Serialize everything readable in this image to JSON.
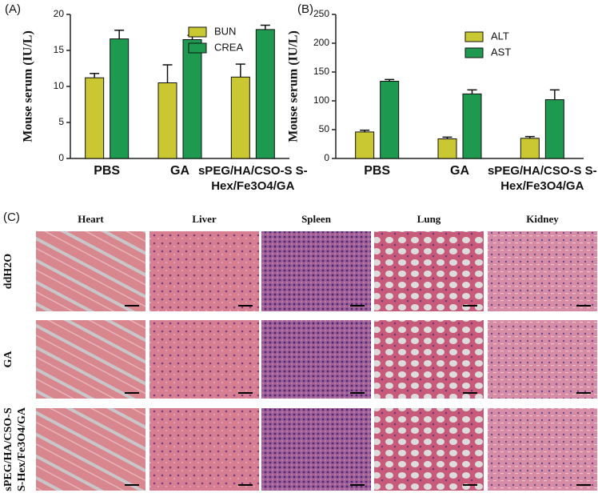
{
  "chart_data": [
    {
      "type": "bar",
      "panel": "(A)",
      "ylabel": "Mouse serum (IU/L)",
      "categories": [
        "PBS",
        "GA",
        "sPEG/HA/CSO-S S-Hex/Fe3O4/GA"
      ],
      "series": [
        {
          "name": "BUN",
          "color": "#c9c832",
          "values": [
            11.2,
            10.5,
            11.3
          ],
          "errors": [
            0.6,
            2.5,
            1.8
          ]
        },
        {
          "name": "CREA",
          "color": "#1e9a50",
          "values": [
            16.6,
            16.5,
            17.9
          ],
          "errors": [
            1.2,
            0.6,
            0.6
          ]
        }
      ],
      "ylim": [
        0,
        20
      ],
      "yticks": [
        0,
        5,
        10,
        15,
        20
      ]
    },
    {
      "type": "bar",
      "panel": "(B)",
      "ylabel": "Mouse serum (IU/L)",
      "categories": [
        "PBS",
        "GA",
        "sPEG/HA/CSO-S S-Hex/Fe3O4/GA"
      ],
      "series": [
        {
          "name": "ALT",
          "color": "#c9c832",
          "values": [
            46,
            34,
            35
          ],
          "errors": [
            3,
            3,
            3
          ]
        },
        {
          "name": "AST",
          "color": "#1e9a50",
          "values": [
            134,
            112,
            102
          ],
          "errors": [
            3,
            7,
            17
          ]
        }
      ],
      "ylim": [
        0,
        250
      ],
      "yticks": [
        0,
        50,
        100,
        150,
        200,
        250
      ]
    }
  ],
  "histology": {
    "panel": "(C)",
    "columns": [
      "Heart",
      "Liver",
      "Spleen",
      "Lung",
      "Kidney"
    ],
    "rows": [
      "ddH2O",
      "GA",
      "sPEG/HA/CSO-S S-Hex/Fe3O4/GA"
    ]
  }
}
